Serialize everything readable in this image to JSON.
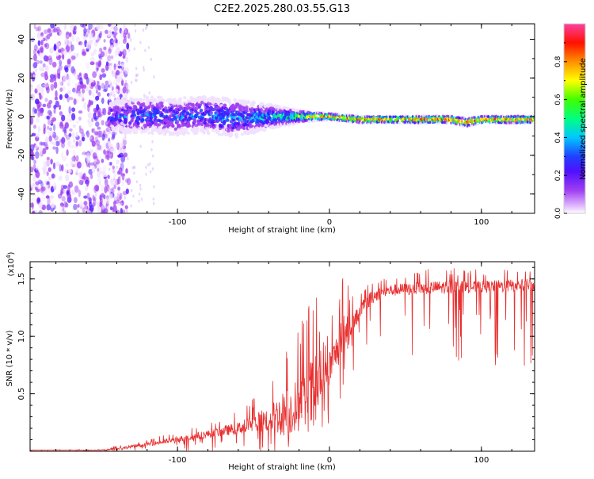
{
  "title": "C2E2.2025.280.03.55.G13",
  "chart_data": [
    {
      "type": "heatmap",
      "title": "C2E2.2025.280.03.55.G13",
      "xlabel": "Height of straight line (km)",
      "ylabel": "Frequency (Hz)",
      "xlim": [
        -197,
        135
      ],
      "ylim": [
        -50,
        48
      ],
      "xticks": [
        -100,
        0,
        100
      ],
      "yticks": [
        -40,
        -20,
        0,
        20,
        40
      ],
      "x_tick_labels": [
        "-100",
        "0",
        "100"
      ],
      "y_tick_labels": [
        "-40",
        "-20",
        "0",
        "20",
        "40"
      ],
      "ridge": {
        "description": "Doppler line: diffuse noise below -145 km, broad spread -145 to -20 km, narrow line near 0 Hz above -10 km",
        "x": [
          -145,
          -120,
          -100,
          -80,
          -60,
          -40,
          -20,
          -10,
          0,
          20,
          40,
          60,
          80,
          90,
          100,
          120,
          135
        ],
        "center_hz": [
          0,
          1,
          0,
          1,
          -1,
          0,
          0,
          0,
          0,
          -1.5,
          -1.5,
          -1.5,
          -1.5,
          -3,
          -1.5,
          -1.5,
          -1.5
        ],
        "half_width_hz": [
          5,
          6,
          6,
          6,
          6,
          4,
          2,
          1.5,
          1.2,
          1.2,
          1.2,
          1.3,
          1.3,
          1.5,
          1.3,
          1.3,
          1.3
        ],
        "peak_amplitude": [
          0.35,
          0.4,
          0.4,
          0.45,
          0.45,
          0.5,
          0.75,
          0.9,
          0.95,
          0.95,
          0.95,
          0.95,
          0.95,
          0.95,
          0.95,
          0.95,
          0.95
        ]
      },
      "colorbar": {
        "label": "Normalized spectral amplitude",
        "ticks": [
          0.0,
          0.2,
          0.4,
          0.6,
          0.8
        ],
        "tick_labels": [
          "0.0",
          "0.2",
          "0.4",
          "0.6",
          "0.8"
        ],
        "range": [
          0,
          1
        ],
        "colors": [
          "#ffffff",
          "#a040f0",
          "#3010ff",
          "#00c8ff",
          "#00ff40",
          "#ffff00",
          "#ff8000",
          "#ff0000",
          "#ff40c0"
        ]
      }
    },
    {
      "type": "line",
      "xlabel": "Height of straight line (km)",
      "ylabel": "SNR (10 * v/v)",
      "y_multiplier": "(x10",
      "y_multiplier_exp": "4",
      "y_multiplier_close": ")",
      "xlim": [
        -197,
        135
      ],
      "ylim": [
        0,
        1.65
      ],
      "xticks": [
        -100,
        0,
        100
      ],
      "yticks": [
        0.5,
        1.0,
        1.5
      ],
      "x_tick_labels": [
        "-100",
        "0",
        "100"
      ],
      "y_tick_labels": [
        "0.5",
        "1.0",
        "1.5"
      ],
      "color": "#e83030",
      "envelope": {
        "x": [
          -197,
          -150,
          -140,
          -130,
          -120,
          -100,
          -80,
          -60,
          -40,
          -30,
          -20,
          -15,
          -10,
          -5,
          0,
          5,
          10,
          15,
          20,
          25,
          30,
          40,
          60,
          80,
          100,
          120,
          135
        ],
        "base": [
          0.01,
          0.01,
          0.02,
          0.04,
          0.06,
          0.1,
          0.15,
          0.2,
          0.28,
          0.33,
          0.4,
          0.45,
          0.5,
          0.6,
          0.72,
          0.88,
          1.0,
          1.1,
          1.22,
          1.3,
          1.36,
          1.4,
          1.42,
          1.43,
          1.43,
          1.44,
          1.45
        ],
        "spike": [
          0.01,
          0.02,
          0.05,
          0.08,
          0.1,
          0.18,
          0.25,
          0.35,
          0.6,
          0.9,
          1.1,
          1.25,
          1.55,
          0.9,
          1.2,
          1.3,
          1.62,
          1.35,
          1.4,
          1.5,
          1.52,
          1.55,
          1.58,
          1.6,
          1.58,
          1.6,
          1.6
        ],
        "dip_depth": [
          0.01,
          0.02,
          0.03,
          0.05,
          0.06,
          0.1,
          0.15,
          0.2,
          0.28,
          0.33,
          0.38,
          0.42,
          0.5,
          0.55,
          0.62,
          0.55,
          0.5,
          0.6,
          0.55,
          0.45,
          0.4,
          0.55,
          0.6,
          0.65,
          0.7,
          0.72,
          0.7
        ]
      }
    }
  ]
}
